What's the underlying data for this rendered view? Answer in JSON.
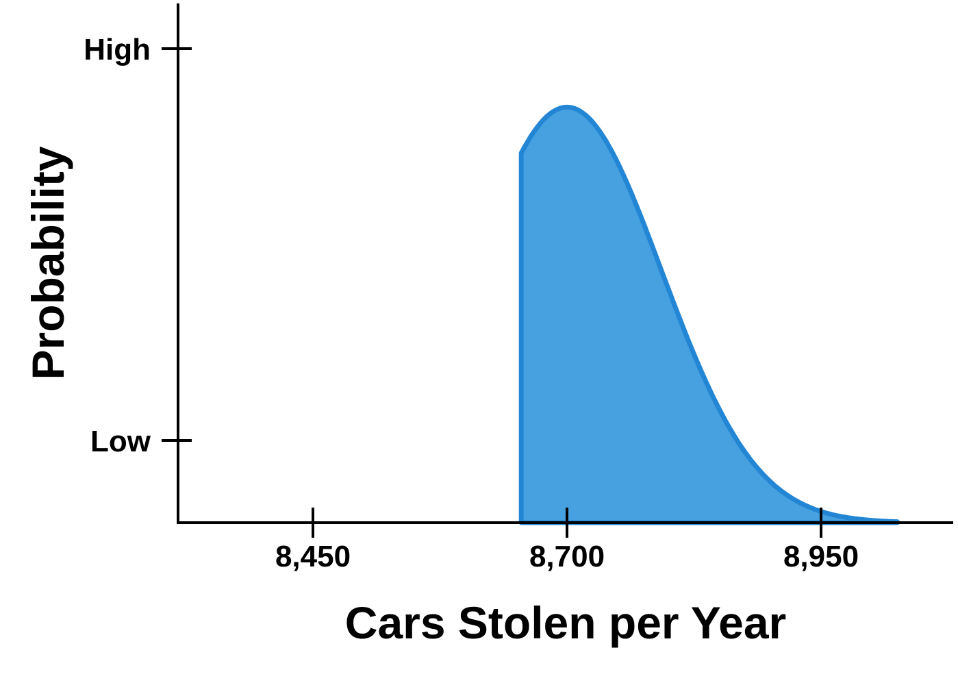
{
  "chart_data": {
    "type": "area",
    "title": "",
    "xlabel": "Cars Stolen per Year",
    "ylabel": "Probability",
    "x_ticks": [
      {
        "value": 8450,
        "label": "8,450"
      },
      {
        "value": 8700,
        "label": "8,700"
      },
      {
        "value": 8950,
        "label": "8,950"
      }
    ],
    "y_ticks": [
      {
        "value": 0.1,
        "label": "Low"
      },
      {
        "value": 0.85,
        "label": "High"
      }
    ],
    "xlim": [
      8570,
      9075
    ],
    "ylim": [
      -0.0,
      1.0
    ],
    "distribution": "normal",
    "mean": 8700,
    "sd": 93,
    "curve_range": [
      8655,
      9025
    ],
    "peak_value": 0.795,
    "grid": false,
    "legend": "none",
    "colors": {
      "fill": "#47a0df",
      "stroke": "#2386d4",
      "axis": "#000000"
    }
  }
}
